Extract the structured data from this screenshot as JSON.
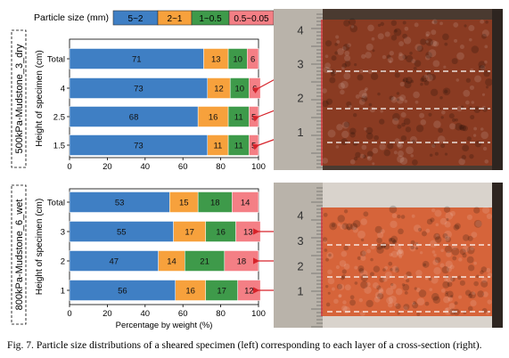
{
  "legend": {
    "title": "Particle size (mm)",
    "items": [
      {
        "label": "5~2",
        "color": "#3f7fc4"
      },
      {
        "label": "2~1",
        "color": "#f7a13c"
      },
      {
        "label": "1~0.5",
        "color": "#3e9a4a"
      },
      {
        "label": "0.5~0.05",
        "color": "#f47f85"
      }
    ]
  },
  "caption": "Fig. 7. Particle size distributions of a sheared specimen (left) corresponding to each layer of a cross-section (right).",
  "colors": {
    "photo_ruler": "#b9b3aa",
    "photo1_soil": "#8a3b22",
    "photo2_soil": "#d6643a",
    "guide_line": "#d6232a"
  },
  "chart_data": [
    {
      "type": "bar",
      "stacked": true,
      "orientation": "horizontal",
      "group_label": "500kPa-Mudstone_3_dry",
      "ylabel": "Height of specimen (cm)",
      "xlabel": "",
      "categories": [
        "Total",
        "4",
        "2.5",
        "1.5"
      ],
      "series": [
        {
          "name": "5~2",
          "values": [
            71,
            73,
            68,
            73
          ]
        },
        {
          "name": "2~1",
          "values": [
            13,
            12,
            16,
            11
          ]
        },
        {
          "name": "1~0.5",
          "values": [
            10,
            10,
            11,
            11
          ]
        },
        {
          "name": "0.5~0.05",
          "values": [
            6,
            6,
            5,
            5
          ]
        }
      ],
      "xlim": [
        0,
        100
      ],
      "xticks": [
        "0",
        "20",
        "40",
        "60",
        "80",
        "100"
      ]
    },
    {
      "type": "bar",
      "stacked": true,
      "orientation": "horizontal",
      "group_label": "800kPa-Mudstone_6_wet",
      "ylabel": "Height of specimen (cm)",
      "xlabel": "Percentage by weight (%)",
      "categories": [
        "Total",
        "3",
        "2",
        "1"
      ],
      "series": [
        {
          "name": "5~2",
          "values": [
            53,
            55,
            47,
            56
          ]
        },
        {
          "name": "2~1",
          "values": [
            15,
            17,
            14,
            16
          ]
        },
        {
          "name": "1~0.5",
          "values": [
            18,
            16,
            21,
            17
          ]
        },
        {
          "name": "0.5~0.05",
          "values": [
            14,
            13,
            18,
            12
          ]
        }
      ],
      "xlim": [
        0,
        100
      ],
      "xticks": [
        "0",
        "20",
        "40",
        "60",
        "80",
        "100"
      ]
    }
  ],
  "photos": [
    {
      "ruler_ticks": [
        "1",
        "2",
        "3",
        "4"
      ]
    },
    {
      "ruler_ticks": [
        "1",
        "2",
        "3",
        "4"
      ]
    }
  ]
}
